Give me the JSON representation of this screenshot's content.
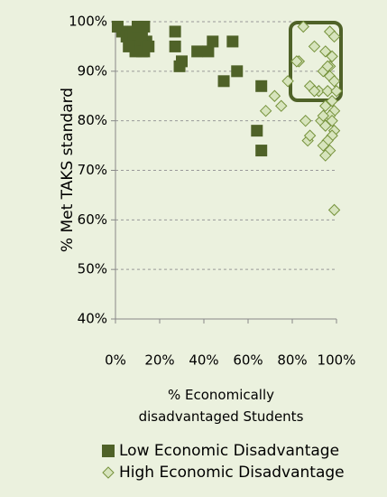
{
  "chart_data": {
    "type": "scatter",
    "y_label": "% Met TAKS standard",
    "x_label": "% Economically disadvantaged Students",
    "xlim": [
      0,
      100
    ],
    "xticks": [
      {
        "value": 0,
        "label": "0%"
      },
      {
        "value": 20,
        "label": "20%"
      },
      {
        "value": 40,
        "label": "40%"
      },
      {
        "value": 60,
        "label": "60%"
      },
      {
        "value": 80,
        "label": "80%"
      },
      {
        "value": 100,
        "label": "100%"
      }
    ],
    "ylim": [
      40,
      100
    ],
    "yticks": [
      {
        "value": 40,
        "label": "40%"
      },
      {
        "value": 50,
        "label": "50%"
      },
      {
        "value": 60,
        "label": "60%"
      },
      {
        "value": 70,
        "label": "70%"
      },
      {
        "value": 80,
        "label": "80%"
      },
      {
        "value": 90,
        "label": "90%"
      },
      {
        "value": 100,
        "label": "100%"
      }
    ],
    "grid": true,
    "legend": "bottom",
    "series": [
      {
        "name": "Low Economic Disadvantage",
        "marker": "square",
        "color": "#4f6228",
        "x": [
          1,
          3,
          5,
          7,
          8,
          10,
          12,
          9,
          11,
          13,
          14,
          12,
          6,
          8,
          10,
          13,
          15,
          27,
          27,
          29,
          30,
          37,
          42,
          44,
          53,
          55,
          49,
          64,
          66,
          66
        ],
        "values": [
          99,
          98,
          97,
          97,
          96,
          95,
          94,
          94,
          98,
          99,
          96,
          97,
          95,
          98,
          99,
          94,
          95,
          98,
          95,
          91,
          92,
          94,
          94,
          96,
          96,
          90,
          88,
          78,
          74,
          87
        ]
      },
      {
        "name": "High Economic Disadvantage",
        "marker": "diamond",
        "color": "#d7e4bd",
        "x": [
          85,
          97,
          99,
          90,
          95,
          98,
          83,
          97,
          94,
          97,
          99,
          78,
          92,
          96,
          88,
          100,
          72,
          98,
          95,
          99,
          68,
          75,
          97,
          93,
          95,
          86,
          99,
          98,
          87,
          96,
          88,
          94,
          97,
          95,
          99,
          90,
          96,
          82,
          98,
          94
        ],
        "values": [
          99,
          98,
          97,
          95,
          94,
          93,
          92,
          91,
          90,
          89,
          88,
          88,
          86,
          86,
          87,
          86,
          85,
          84,
          83,
          82,
          82,
          83,
          81,
          80,
          79,
          80,
          78,
          77,
          76,
          76,
          77,
          75,
          74,
          73,
          62,
          86,
          91,
          92,
          80,
          81
        ]
      }
    ]
  }
}
